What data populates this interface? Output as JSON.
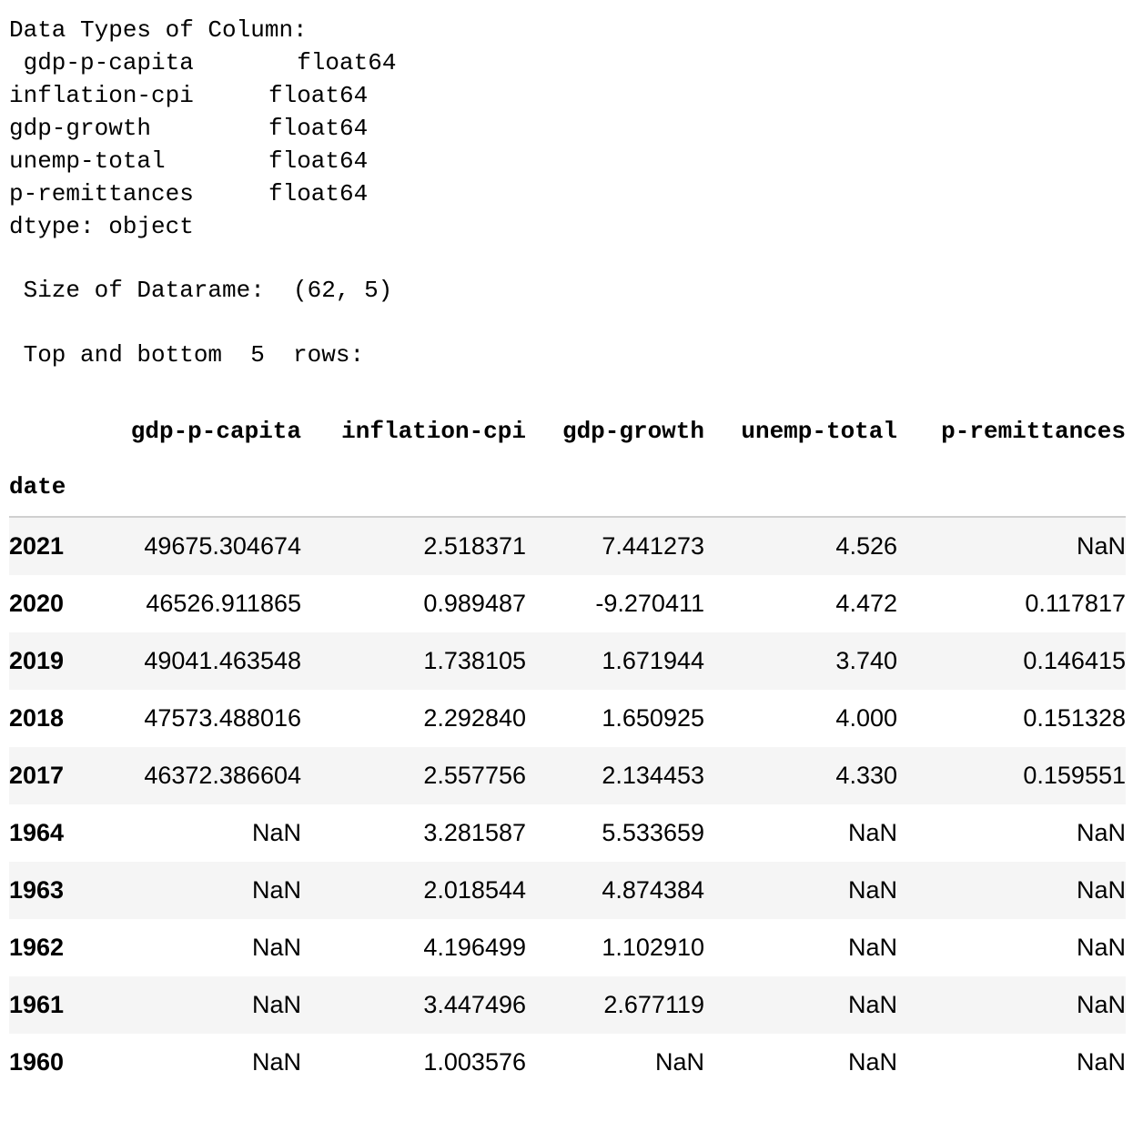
{
  "dtype_section": {
    "header": "Data Types of Column:",
    "rows": [
      {
        "name": " gdp-p-capita",
        "type": "  float64"
      },
      {
        "name": "inflation-cpi",
        "type": "float64"
      },
      {
        "name": "gdp-growth",
        "type": "float64"
      },
      {
        "name": "unemp-total",
        "type": "float64"
      },
      {
        "name": "p-remittances",
        "type": "float64"
      }
    ],
    "footer": "dtype: object"
  },
  "size_line": " Size of Datarame:  (62, 5)",
  "topbottom_line": " Top and bottom  5  rows:",
  "table": {
    "columns": [
      "gdp-p-capita",
      "inflation-cpi",
      "gdp-growth",
      "unemp-total",
      "p-remittances"
    ],
    "index_name": "date",
    "rows": [
      {
        "index": "2021",
        "cells": [
          "49675.304674",
          "2.518371",
          "7.441273",
          "4.526",
          "NaN"
        ]
      },
      {
        "index": "2020",
        "cells": [
          "46526.911865",
          "0.989487",
          "-9.270411",
          "4.472",
          "0.117817"
        ]
      },
      {
        "index": "2019",
        "cells": [
          "49041.463548",
          "1.738105",
          "1.671944",
          "3.740",
          "0.146415"
        ]
      },
      {
        "index": "2018",
        "cells": [
          "47573.488016",
          "2.292840",
          "1.650925",
          "4.000",
          "0.151328"
        ]
      },
      {
        "index": "2017",
        "cells": [
          "46372.386604",
          "2.557756",
          "2.134453",
          "4.330",
          "0.159551"
        ]
      },
      {
        "index": "1964",
        "cells": [
          "NaN",
          "3.281587",
          "5.533659",
          "NaN",
          "NaN"
        ]
      },
      {
        "index": "1963",
        "cells": [
          "NaN",
          "2.018544",
          "4.874384",
          "NaN",
          "NaN"
        ]
      },
      {
        "index": "1962",
        "cells": [
          "NaN",
          "4.196499",
          "1.102910",
          "NaN",
          "NaN"
        ]
      },
      {
        "index": "1961",
        "cells": [
          "NaN",
          "3.447496",
          "2.677119",
          "NaN",
          "NaN"
        ]
      },
      {
        "index": "1960",
        "cells": [
          "NaN",
          "1.003576",
          "NaN",
          "NaN",
          "NaN"
        ]
      }
    ]
  }
}
